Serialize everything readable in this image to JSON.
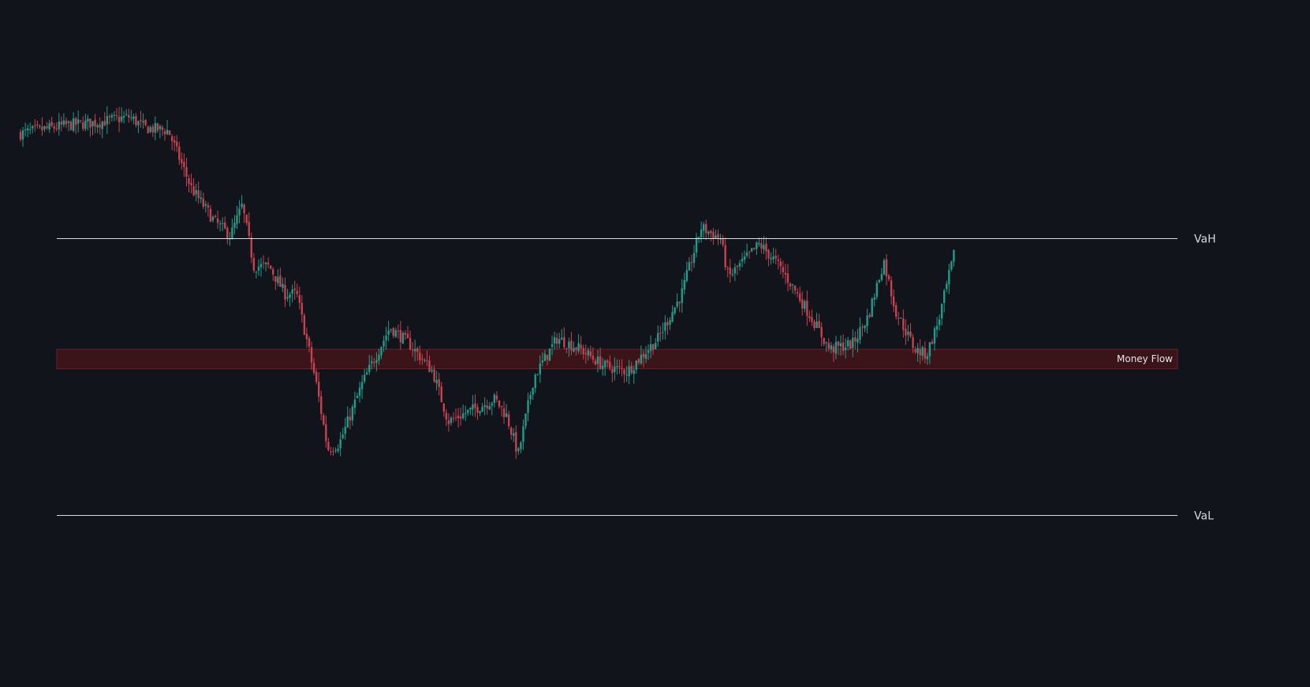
{
  "colors": {
    "background": "#12141c",
    "up": "#1f9c8a",
    "down": "#c8414e",
    "level_line": "#d9dbe0",
    "zone_fill": "#3a1419",
    "zone_border": "#6b2027"
  },
  "levels": {
    "vah_label": "VaH",
    "val_label": "VaL",
    "zone_label": "Money Flow"
  },
  "chart_data": {
    "type": "candlestick",
    "title": "",
    "xlabel": "",
    "ylabel": "",
    "ylim": [
      0,
      100
    ],
    "grid": false,
    "vah": 70,
    "val": 20,
    "money_flow_zone": [
      46.5,
      50
    ],
    "price_path": [
      [
        0,
        89
      ],
      [
        0.06,
        90.5
      ],
      [
        0.1,
        91
      ],
      [
        0.14,
        92
      ],
      [
        0.16,
        90
      ],
      [
        0.19,
        89.5
      ],
      [
        0.2,
        86
      ],
      [
        0.22,
        79
      ],
      [
        0.25,
        73
      ],
      [
        0.27,
        70.5
      ],
      [
        0.285,
        76
      ],
      [
        0.3,
        65
      ],
      [
        0.32,
        65
      ],
      [
        0.34,
        60
      ],
      [
        0.355,
        60
      ],
      [
        0.38,
        44
      ],
      [
        0.395,
        32
      ],
      [
        0.41,
        33
      ],
      [
        0.44,
        44
      ],
      [
        0.475,
        54
      ],
      [
        0.5,
        51
      ],
      [
        0.53,
        46
      ],
      [
        0.55,
        37
      ],
      [
        0.58,
        39
      ],
      [
        0.61,
        41
      ],
      [
        0.625,
        38
      ],
      [
        0.64,
        31
      ],
      [
        0.66,
        45
      ],
      [
        0.69,
        52
      ],
      [
        0.72,
        50
      ],
      [
        0.75,
        47
      ],
      [
        0.78,
        46
      ],
      [
        0.82,
        52
      ],
      [
        0.85,
        60
      ],
      [
        0.875,
        72
      ],
      [
        0.9,
        70
      ],
      [
        0.91,
        63
      ],
      [
        0.93,
        66
      ],
      [
        0.95,
        69
      ],
      [
        0.97,
        66
      ],
      [
        0.99,
        62
      ],
      [
        1.02,
        55
      ],
      [
        1.04,
        50
      ],
      [
        1.07,
        51
      ],
      [
        1.09,
        56
      ],
      [
        1.11,
        66
      ],
      [
        1.125,
        57
      ],
      [
        1.15,
        50
      ],
      [
        1.165,
        49
      ],
      [
        1.18,
        55
      ],
      [
        1.2,
        67
      ]
    ]
  }
}
